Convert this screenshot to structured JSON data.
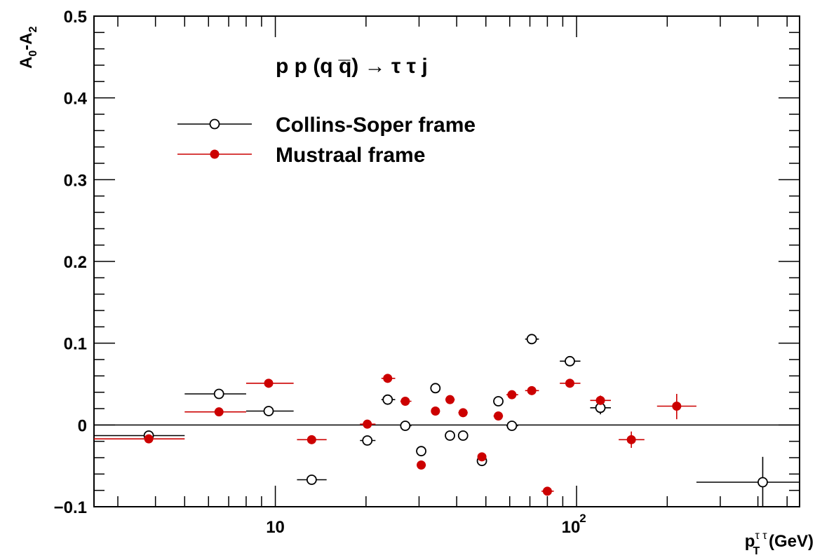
{
  "chart_data": {
    "type": "scatter",
    "title": "p p (q q̅) → τ τ j",
    "xlabel": {
      "main": "p",
      "sup": "τ τ",
      "sub": "T",
      "unit": "(GeV)"
    },
    "ylabel": {
      "parts": [
        "A",
        "0",
        "-A",
        "2"
      ]
    },
    "x_scale": "log",
    "xlim": [
      2.5,
      550
    ],
    "ylim": [
      -0.1,
      0.5
    ],
    "y_ticks": [
      {
        "value": -0.1,
        "label": "−0.1"
      },
      {
        "value": 0,
        "label": "0"
      },
      {
        "value": 0.1,
        "label": "0.1"
      },
      {
        "value": 0.2,
        "label": "0.2"
      },
      {
        "value": 0.3,
        "label": "0.3"
      },
      {
        "value": 0.4,
        "label": "0.4"
      },
      {
        "value": 0.5,
        "label": "0.5"
      }
    ],
    "x_ticks": [
      {
        "value": 10,
        "label": "10"
      },
      {
        "value": 100,
        "label": "10",
        "exp": "2"
      }
    ],
    "reference_line": 0,
    "legend_position": "top-left",
    "series": [
      {
        "name": "Collins-Soper frame",
        "marker": "open-circle",
        "color": "#000000",
        "points": [
          {
            "x": 3.8,
            "xlo": 2.5,
            "xhi": 5,
            "y": -0.013
          },
          {
            "x": 6.5,
            "xlo": 5,
            "xhi": 8,
            "y": 0.038
          },
          {
            "x": 9.5,
            "xlo": 8,
            "xhi": 11.5,
            "y": 0.017
          },
          {
            "x": 13.2,
            "xlo": 11.8,
            "xhi": 14.8,
            "y": -0.067
          },
          {
            "x": 20.2,
            "xlo": 19.1,
            "xhi": 21.5,
            "y": -0.019
          },
          {
            "x": 23.6,
            "xlo": 22.5,
            "xhi": 25,
            "y": 0.031
          },
          {
            "x": 27,
            "xlo": 26,
            "xhi": 28.3,
            "y": -0.001
          },
          {
            "x": 30.5,
            "xlo": 29.5,
            "xhi": 31.6,
            "y": -0.032
          },
          {
            "x": 34,
            "xlo": 33,
            "xhi": 35.2,
            "y": 0.045
          },
          {
            "x": 38,
            "xlo": 36.7,
            "xhi": 39.4,
            "y": -0.013
          },
          {
            "x": 42,
            "xlo": 40.5,
            "xhi": 43.5,
            "y": -0.013
          },
          {
            "x": 48.5,
            "xlo": 47,
            "xhi": 50.2,
            "y": -0.044
          },
          {
            "x": 55,
            "xlo": 53,
            "xhi": 57,
            "y": 0.029
          },
          {
            "x": 61,
            "xlo": 58.5,
            "xhi": 64,
            "y": -0.001
          },
          {
            "x": 71,
            "xlo": 67.5,
            "xhi": 75,
            "y": 0.105
          },
          {
            "x": 95,
            "xlo": 88,
            "xhi": 103,
            "y": 0.078,
            "ylo": 0.076,
            "yhi": 0.08
          },
          {
            "x": 120,
            "xlo": 111,
            "xhi": 130,
            "y": 0.021,
            "ylo": 0.013,
            "yhi": 0.029
          },
          {
            "x": 415,
            "xlo": 250,
            "xhi": 550,
            "y": -0.07,
            "ylo": -0.1,
            "yhi": -0.039
          }
        ]
      },
      {
        "name": "Mustraal frame",
        "marker": "filled-circle",
        "color": "#cc0000",
        "points": [
          {
            "x": 3.8,
            "xlo": 2.5,
            "xhi": 5,
            "y": -0.017
          },
          {
            "x": 6.5,
            "xlo": 5,
            "xhi": 8,
            "y": 0.016
          },
          {
            "x": 9.5,
            "xlo": 8,
            "xhi": 11.5,
            "y": 0.051
          },
          {
            "x": 13.2,
            "xlo": 11.8,
            "xhi": 14.8,
            "y": -0.018
          },
          {
            "x": 20.2,
            "xlo": 19.1,
            "xhi": 21.5,
            "y": 0.001
          },
          {
            "x": 23.6,
            "xlo": 22.5,
            "xhi": 25,
            "y": 0.057
          },
          {
            "x": 27,
            "xlo": 26,
            "xhi": 28.3,
            "y": 0.029
          },
          {
            "x": 30.5,
            "xlo": 29.5,
            "xhi": 31.6,
            "y": -0.049
          },
          {
            "x": 34,
            "xlo": 33,
            "xhi": 35.2,
            "y": 0.017
          },
          {
            "x": 38,
            "xlo": 36.7,
            "xhi": 39.4,
            "y": 0.031
          },
          {
            "x": 42,
            "xlo": 40.5,
            "xhi": 43.5,
            "y": 0.015
          },
          {
            "x": 48.5,
            "xlo": 47,
            "xhi": 50.2,
            "y": -0.039
          },
          {
            "x": 55,
            "xlo": 53,
            "xhi": 57,
            "y": 0.011
          },
          {
            "x": 61,
            "xlo": 58.5,
            "xhi": 64,
            "y": 0.037
          },
          {
            "x": 71,
            "xlo": 67.5,
            "xhi": 75,
            "y": 0.042
          },
          {
            "x": 80,
            "xlo": 76.5,
            "xhi": 84,
            "y": -0.081
          },
          {
            "x": 95,
            "xlo": 88,
            "xhi": 103,
            "y": 0.051
          },
          {
            "x": 120,
            "xlo": 111,
            "xhi": 130,
            "y": 0.03,
            "ylo": 0.026,
            "yhi": 0.036
          },
          {
            "x": 152,
            "xlo": 138,
            "xhi": 168,
            "y": -0.018,
            "ylo": -0.028,
            "yhi": -0.008
          },
          {
            "x": 215,
            "xlo": 185,
            "xhi": 250,
            "y": 0.023,
            "ylo": 0.007,
            "yhi": 0.038
          }
        ]
      }
    ]
  }
}
